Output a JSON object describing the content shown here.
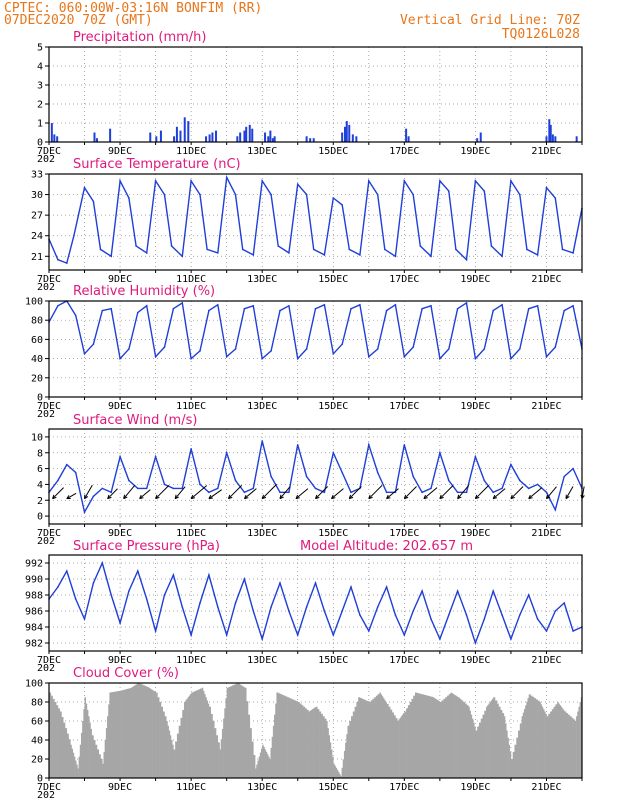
{
  "header": {
    "left_line1": "CPTEC:  060:00W-03:16N  BONFIM (RR)",
    "left_line2": "07DEC2020 70Z (GMT)",
    "right_line1": "Vertical Grid Line: 70Z",
    "right_line2": "TQ0126L028"
  },
  "colors": {
    "header": "#e8761a",
    "title": "#e0197d",
    "series": "#1f3fd8",
    "cloud": "#a6a6a6",
    "grid": "#8a8a8a"
  },
  "x_axis": {
    "labels": [
      "7DEC",
      "9DEC",
      "11DEC",
      "13DEC",
      "15DEC",
      "17DEC",
      "19DEC",
      "21DEC"
    ],
    "label_days": [
      0,
      2,
      4,
      6,
      8,
      10,
      12,
      14
    ],
    "range_days": [
      0,
      15
    ],
    "year_stub": "202"
  },
  "chart_data": [
    {
      "id": "precipitation",
      "type": "bar",
      "title": "Precipitation (mm/h)",
      "ylim": [
        0,
        5
      ],
      "yticks": [
        0,
        1,
        2,
        3,
        4,
        5
      ],
      "grid": true,
      "x_days": [
        0.08,
        0.15,
        0.23,
        1.28,
        1.35,
        1.72,
        2.85,
        3.02,
        3.15,
        3.52,
        3.6,
        3.7,
        3.82,
        3.92,
        4.42,
        4.52,
        4.6,
        4.7,
        5.3,
        5.38,
        5.5,
        5.55,
        5.65,
        5.72,
        6.08,
        6.17,
        6.23,
        6.3,
        6.35,
        7.25,
        7.35,
        7.45,
        8.25,
        8.33,
        8.38,
        8.45,
        8.55,
        8.65,
        10.05,
        10.12,
        12.05,
        12.15,
        14.0,
        14.08,
        14.12,
        14.18,
        14.25,
        14.85
      ],
      "values": [
        1.0,
        0.4,
        0.3,
        0.5,
        0.2,
        0.7,
        0.5,
        0.3,
        0.6,
        0.3,
        0.8,
        0.6,
        1.3,
        1.1,
        0.3,
        0.4,
        0.5,
        0.6,
        0.3,
        0.5,
        0.6,
        0.8,
        0.9,
        0.7,
        0.5,
        0.3,
        0.6,
        0.2,
        0.3,
        0.3,
        0.2,
        0.2,
        0.5,
        0.8,
        1.1,
        0.9,
        0.4,
        0.3,
        0.7,
        0.3,
        0.2,
        0.5,
        0.3,
        1.2,
        0.9,
        0.4,
        0.3,
        0.3
      ]
    },
    {
      "id": "temperature",
      "type": "line",
      "title": "Surface Temperature (nC)",
      "ylim": [
        19,
        33
      ],
      "yticks": [
        21,
        24,
        27,
        30,
        33
      ],
      "grid": true,
      "x_days": [
        0.0,
        0.25,
        0.5,
        0.7,
        1.0,
        1.25,
        1.45,
        1.75,
        2.0,
        2.25,
        2.45,
        2.75,
        3.0,
        3.25,
        3.45,
        3.75,
        4.0,
        4.25,
        4.45,
        4.75,
        5.0,
        5.25,
        5.45,
        5.75,
        6.0,
        6.25,
        6.45,
        6.75,
        7.0,
        7.25,
        7.45,
        7.75,
        8.0,
        8.25,
        8.45,
        8.75,
        9.0,
        9.25,
        9.45,
        9.75,
        10.0,
        10.25,
        10.45,
        10.75,
        11.0,
        11.25,
        11.45,
        11.75,
        12.0,
        12.25,
        12.45,
        12.75,
        13.0,
        13.25,
        13.45,
        13.75,
        14.0,
        14.25,
        14.45,
        14.75,
        15.0
      ],
      "values": [
        23.5,
        20.5,
        20.0,
        24.0,
        31.0,
        29.0,
        22.0,
        21.0,
        32.0,
        29.5,
        22.5,
        21.5,
        32.0,
        30.0,
        22.5,
        21.0,
        32.0,
        30.0,
        22.0,
        21.5,
        32.5,
        30.0,
        22.0,
        21.2,
        32.0,
        30.0,
        22.5,
        21.5,
        31.5,
        30.0,
        22.0,
        21.2,
        29.5,
        28.5,
        22.0,
        21.2,
        32.0,
        30.0,
        22.0,
        21.0,
        32.0,
        30.0,
        22.5,
        21.0,
        32.0,
        30.5,
        22.0,
        20.5,
        32.0,
        30.5,
        22.5,
        21.0,
        32.0,
        30.0,
        22.0,
        21.2,
        31.0,
        29.5,
        22.0,
        21.5,
        28.0
      ]
    },
    {
      "id": "humidity",
      "type": "line",
      "title": "Relative Humidity (%)",
      "ylim": [
        0,
        100
      ],
      "yticks": [
        0,
        20,
        40,
        60,
        80,
        100
      ],
      "grid": true,
      "x_days": [
        0.0,
        0.25,
        0.5,
        0.75,
        1.0,
        1.25,
        1.5,
        1.75,
        2.0,
        2.25,
        2.5,
        2.75,
        3.0,
        3.25,
        3.5,
        3.75,
        4.0,
        4.25,
        4.5,
        4.75,
        5.0,
        5.25,
        5.5,
        5.75,
        6.0,
        6.25,
        6.5,
        6.75,
        7.0,
        7.25,
        7.5,
        7.75,
        8.0,
        8.25,
        8.5,
        8.75,
        9.0,
        9.25,
        9.5,
        9.75,
        10.0,
        10.25,
        10.5,
        10.75,
        11.0,
        11.25,
        11.5,
        11.75,
        12.0,
        12.25,
        12.5,
        12.75,
        13.0,
        13.25,
        13.5,
        13.75,
        14.0,
        14.25,
        14.5,
        14.75,
        15.0
      ],
      "values": [
        78,
        95,
        100,
        85,
        45,
        55,
        90,
        92,
        40,
        50,
        88,
        95,
        42,
        52,
        92,
        98,
        40,
        48,
        90,
        96,
        42,
        50,
        92,
        95,
        40,
        48,
        90,
        95,
        40,
        50,
        92,
        96,
        45,
        55,
        92,
        96,
        42,
        50,
        90,
        96,
        42,
        52,
        92,
        95,
        40,
        50,
        92,
        98,
        40,
        50,
        90,
        96,
        40,
        50,
        92,
        95,
        42,
        52,
        90,
        95,
        50
      ]
    },
    {
      "id": "wind",
      "type": "line",
      "title": "Surface Wind (m/s)",
      "ylim": [
        -1,
        11
      ],
      "yticks": [
        0,
        2,
        4,
        6,
        8,
        10
      ],
      "grid": true,
      "x_days": [
        0.0,
        0.25,
        0.5,
        0.75,
        1.0,
        1.25,
        1.5,
        1.75,
        2.0,
        2.25,
        2.5,
        2.75,
        3.0,
        3.25,
        3.5,
        3.75,
        4.0,
        4.25,
        4.5,
        4.75,
        5.0,
        5.25,
        5.5,
        5.75,
        6.0,
        6.25,
        6.5,
        6.75,
        7.0,
        7.25,
        7.5,
        7.75,
        8.0,
        8.25,
        8.5,
        8.75,
        9.0,
        9.25,
        9.5,
        9.75,
        10.0,
        10.25,
        10.5,
        10.75,
        11.0,
        11.25,
        11.5,
        11.75,
        12.0,
        12.25,
        12.5,
        12.75,
        13.0,
        13.25,
        13.5,
        13.75,
        14.0,
        14.25,
        14.5,
        14.75,
        15.0
      ],
      "values": [
        3.0,
        4.5,
        6.5,
        5.5,
        0.5,
        2.5,
        3.5,
        3.0,
        7.5,
        4.5,
        3.5,
        3.5,
        7.5,
        4.0,
        3.5,
        3.5,
        8.5,
        4.0,
        3.0,
        3.5,
        8.0,
        4.5,
        3.0,
        3.5,
        9.5,
        5.0,
        3.0,
        3.0,
        9.0,
        5.0,
        3.5,
        3.0,
        8.0,
        5.5,
        3.0,
        3.5,
        9.0,
        5.5,
        3.0,
        3.0,
        9.0,
        5.0,
        3.0,
        3.5,
        8.0,
        4.5,
        3.0,
        3.0,
        7.5,
        4.5,
        3.0,
        3.5,
        6.5,
        4.5,
        3.5,
        4.0,
        3.0,
        0.8,
        5.0,
        6.0,
        3.5
      ],
      "barbs": {
        "x_days": [
          0.1,
          0.5,
          1.0,
          1.65,
          2.1,
          2.55,
          3.0,
          3.55,
          4.0,
          4.5,
          5.05,
          5.5,
          6.0,
          6.5,
          6.95,
          7.5,
          7.95,
          8.45,
          9.0,
          9.5,
          10.0,
          10.55,
          11.0,
          11.5,
          12.0,
          12.5,
          13.0,
          13.5,
          14.0,
          14.55,
          15.0
        ],
        "direction_deg": [
          45,
          30,
          60,
          45,
          50,
          40,
          45,
          50,
          40,
          35,
          45,
          40,
          45,
          50,
          40,
          45,
          40,
          45,
          45,
          40,
          45,
          40,
          45,
          50,
          45,
          40,
          45,
          40,
          50,
          60,
          80
        ],
        "speed": [
          3.0,
          1.5,
          3.0,
          2.5,
          3.5,
          2.5,
          4.0,
          3.0,
          4.5,
          3.0,
          4.0,
          3.0,
          4.5,
          3.0,
          3.0,
          3.5,
          3.0,
          3.5,
          4.0,
          3.0,
          3.5,
          3.5,
          4.0,
          3.5,
          4.0,
          3.0,
          3.5,
          3.5,
          3.0,
          2.5,
          2.0
        ]
      }
    },
    {
      "id": "pressure",
      "type": "line",
      "title": "Surface Pressure (hPa)",
      "subtitle": "Model Altitude: 202.657 m",
      "ylim": [
        981,
        993
      ],
      "yticks": [
        982,
        984,
        986,
        988,
        990,
        992
      ],
      "grid": true,
      "x_days": [
        0.0,
        0.25,
        0.5,
        0.75,
        1.0,
        1.25,
        1.5,
        1.75,
        2.0,
        2.25,
        2.5,
        2.75,
        3.0,
        3.25,
        3.5,
        3.75,
        4.0,
        4.25,
        4.5,
        4.75,
        5.0,
        5.25,
        5.5,
        5.75,
        6.0,
        6.25,
        6.5,
        6.75,
        7.0,
        7.25,
        7.5,
        7.75,
        8.0,
        8.25,
        8.5,
        8.75,
        9.0,
        9.25,
        9.5,
        9.75,
        10.0,
        10.25,
        10.5,
        10.75,
        11.0,
        11.25,
        11.5,
        11.75,
        12.0,
        12.25,
        12.5,
        12.75,
        13.0,
        13.25,
        13.5,
        13.75,
        14.0,
        14.25,
        14.5,
        14.75,
        15.0
      ],
      "values": [
        987.5,
        989.0,
        991.0,
        987.5,
        985.0,
        989.5,
        992.0,
        988.0,
        984.5,
        988.5,
        991.0,
        987.5,
        983.5,
        988.0,
        990.5,
        986.5,
        983.0,
        987.0,
        990.5,
        986.5,
        983.0,
        987.0,
        990.0,
        986.0,
        982.5,
        986.5,
        989.5,
        986.0,
        983.0,
        986.5,
        989.5,
        986.0,
        983.0,
        986.0,
        989.0,
        985.5,
        983.5,
        986.5,
        989.0,
        985.5,
        983.0,
        986.0,
        988.5,
        985.0,
        982.5,
        985.5,
        988.5,
        985.5,
        982.0,
        985.0,
        988.5,
        985.5,
        982.5,
        985.5,
        988.0,
        985.0,
        983.5,
        986.0,
        987.0,
        983.5,
        984.0
      ]
    },
    {
      "id": "cloud",
      "type": "area",
      "title": "Cloud Cover (%)",
      "ylim": [
        0,
        100
      ],
      "yticks": [
        0,
        20,
        40,
        60,
        80,
        100
      ],
      "grid": true,
      "x_days": [
        0.0,
        0.3,
        0.6,
        0.8,
        1.0,
        1.2,
        1.5,
        1.7,
        2.0,
        2.3,
        2.5,
        2.8,
        3.0,
        3.3,
        3.5,
        3.8,
        4.0,
        4.3,
        4.5,
        4.8,
        5.0,
        5.3,
        5.5,
        5.8,
        6.0,
        6.2,
        6.4,
        6.7,
        7.0,
        7.3,
        7.5,
        7.8,
        8.0,
        8.2,
        8.4,
        8.7,
        9.0,
        9.3,
        9.5,
        9.8,
        10.0,
        10.3,
        10.5,
        10.8,
        11.0,
        11.3,
        11.5,
        11.8,
        12.0,
        12.3,
        12.5,
        12.8,
        13.0,
        13.3,
        13.5,
        13.8,
        14.0,
        14.3,
        14.5,
        14.8,
        15.0
      ],
      "values": [
        90,
        70,
        35,
        10,
        85,
        45,
        15,
        90,
        92,
        95,
        100,
        95,
        90,
        60,
        30,
        80,
        90,
        95,
        75,
        30,
        95,
        100,
        95,
        10,
        35,
        20,
        90,
        85,
        80,
        70,
        75,
        60,
        15,
        2,
        55,
        85,
        80,
        90,
        78,
        60,
        70,
        90,
        88,
        85,
        80,
        90,
        85,
        75,
        50,
        75,
        85,
        65,
        20,
        65,
        88,
        80,
        65,
        80,
        70,
        60,
        90
      ]
    }
  ]
}
